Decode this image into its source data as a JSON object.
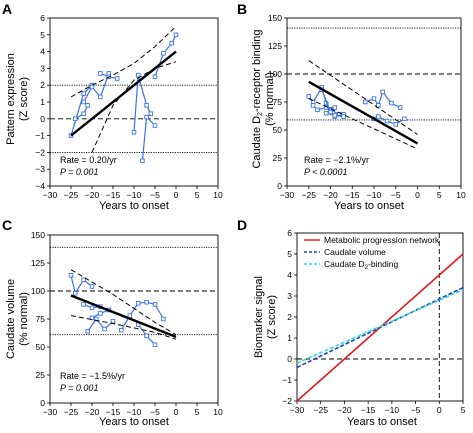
{
  "chart_data": [
    {
      "panel": "A",
      "type": "line",
      "xlabel": "Years to onset",
      "ylabel": [
        "Pattern expression",
        "(Z score)"
      ],
      "xlim": [
        -30,
        10
      ],
      "ylim": [
        -4,
        6
      ],
      "xticks": [
        -30,
        -25,
        -20,
        -15,
        -10,
        -5,
        0,
        5,
        10
      ],
      "yticks": [
        -4,
        -3,
        -2,
        -1,
        0,
        1,
        2,
        3,
        4,
        5,
        6
      ],
      "annotation": {
        "rate": "Rate = 0.20/yr",
        "p": "P = 0.001"
      },
      "reference_lines": [
        {
          "y": 2,
          "style": "dotted"
        },
        {
          "y": 0,
          "style": "dashed"
        },
        {
          "y": -2,
          "style": "dotted"
        }
      ],
      "regression": {
        "x": [
          -25,
          0
        ],
        "y": [
          -1.0,
          4.0
        ]
      },
      "confidence_upper": {
        "x": [
          -25,
          -20,
          -15,
          -10,
          -5,
          0
        ],
        "y": [
          1.3,
          2.0,
          2.6,
          3.3,
          4.3,
          5.5
        ]
      },
      "confidence_lower": {
        "x": [
          -20,
          -15,
          -10,
          -5,
          0
        ],
        "y": [
          -2.0,
          0.8,
          2.3,
          3.0,
          3.4
        ]
      },
      "subjects": [
        {
          "x": [
            -25,
            -22,
            -20
          ],
          "y": [
            -1.0,
            1.5,
            2.0
          ]
        },
        {
          "x": [
            -24,
            -22,
            -21
          ],
          "y": [
            0.0,
            0.3,
            0.8
          ]
        },
        {
          "x": [
            -22,
            -20,
            -18,
            -16
          ],
          "y": [
            1.0,
            1.9,
            1.3,
            2.7
          ]
        },
        {
          "x": [
            -18,
            -16,
            -14
          ],
          "y": [
            2.7,
            2.5,
            2.4
          ]
        },
        {
          "x": [
            -10,
            -9,
            -7,
            -6
          ],
          "y": [
            -0.8,
            2.6,
            0.8,
            0.3
          ]
        },
        {
          "x": [
            -8,
            -7,
            -5
          ],
          "y": [
            -2.5,
            0.1,
            -0.4
          ]
        },
        {
          "x": [
            -5,
            -3,
            -1,
            0
          ],
          "y": [
            2.5,
            3.9,
            4.5,
            5.0
          ]
        }
      ]
    },
    {
      "panel": "B",
      "type": "line",
      "xlabel": "Years to onset",
      "ylabel": [
        "Caudate D2-receptor binding",
        "(% normal)"
      ],
      "xlim": [
        -30,
        10
      ],
      "ylim": [
        0,
        150
      ],
      "xticks": [
        -30,
        -25,
        -20,
        -15,
        -10,
        -5,
        0,
        5,
        10
      ],
      "yticks": [
        0,
        25,
        50,
        75,
        100,
        125,
        150
      ],
      "annotation": {
        "rate": "Rate = −2.1%/yr",
        "p": "P < 0.0001"
      },
      "reference_lines": [
        {
          "y": 141,
          "style": "dotted"
        },
        {
          "y": 100,
          "style": "dashed"
        },
        {
          "y": 59,
          "style": "dotted"
        }
      ],
      "regression": {
        "x": [
          -25,
          0
        ],
        "y": [
          93,
          38
        ]
      },
      "confidence_upper": {
        "x": [
          -25,
          0
        ],
        "y": [
          112,
          46
        ]
      },
      "confidence_lower": {
        "x": [
          -25,
          0
        ],
        "y": [
          78,
          33
        ]
      },
      "subjects": [
        {
          "x": [
            -25,
            -24,
            -22,
            -21,
            -20,
            -18
          ],
          "y": [
            80,
            75,
            88,
            74,
            68,
            64
          ]
        },
        {
          "x": [
            -24,
            -23,
            -21,
            -19
          ],
          "y": [
            72,
            68,
            70,
            70
          ]
        },
        {
          "x": [
            -22,
            -20,
            -19,
            -17
          ],
          "y": [
            86,
            66,
            62,
            64
          ]
        },
        {
          "x": [
            -21,
            -19,
            -17
          ],
          "y": [
            65,
            63,
            62
          ]
        },
        {
          "x": [
            -12,
            -10,
            -9,
            -8,
            -6,
            -4
          ],
          "y": [
            75,
            78,
            72,
            84,
            74,
            70
          ]
        },
        {
          "x": [
            -10,
            -9,
            -7,
            -5,
            -3
          ],
          "y": [
            60,
            62,
            58,
            55,
            60
          ]
        }
      ]
    },
    {
      "panel": "C",
      "type": "line",
      "xlabel": "Years to onset",
      "ylabel": [
        "Caudate volume",
        "(% normal)"
      ],
      "xlim": [
        -30,
        10
      ],
      "ylim": [
        0,
        150
      ],
      "xticks": [
        -30,
        -25,
        -20,
        -15,
        -10,
        -5,
        0,
        5,
        10
      ],
      "yticks": [
        0,
        25,
        50,
        75,
        100,
        125,
        150
      ],
      "annotation": {
        "rate": "Rate = −1.5%/yr",
        "p": "P = 0.001"
      },
      "reference_lines": [
        {
          "y": 139,
          "style": "dotted"
        },
        {
          "y": 100,
          "style": "dashed"
        },
        {
          "y": 61,
          "style": "dotted"
        }
      ],
      "regression": {
        "x": [
          -25,
          0
        ],
        "y": [
          96,
          59
        ]
      },
      "confidence_upper": {
        "x": [
          -25,
          -15,
          -5,
          0
        ],
        "y": [
          119,
          97,
          72,
          61
        ]
      },
      "confidence_lower": {
        "x": [
          -25,
          -15,
          -5,
          0
        ],
        "y": [
          78,
          71,
          63,
          57
        ]
      },
      "subjects": [
        {
          "x": [
            -25,
            -24,
            -22,
            -20
          ],
          "y": [
            114,
            98,
            110,
            104
          ]
        },
        {
          "x": [
            -22,
            -20,
            -18
          ],
          "y": [
            88,
            85,
            86
          ]
        },
        {
          "x": [
            -21,
            -19,
            -17,
            -15
          ],
          "y": [
            64,
            75,
            66,
            73
          ]
        },
        {
          "x": [
            -20,
            -18,
            -16
          ],
          "y": [
            76,
            80,
            83
          ]
        },
        {
          "x": [
            -13,
            -11,
            -9,
            -7,
            -5,
            -3
          ],
          "y": [
            65,
            78,
            89,
            90,
            88,
            75
          ]
        },
        {
          "x": [
            -9,
            -7,
            -5
          ],
          "y": [
            70,
            60,
            52
          ]
        }
      ]
    },
    {
      "panel": "D",
      "type": "line",
      "xlabel": "Years to onset",
      "ylabel": [
        "Biomarker signal",
        "(Z score)"
      ],
      "xlim": [
        -30,
        5
      ],
      "ylim": [
        -2,
        6
      ],
      "xticks": [
        -30,
        -25,
        -20,
        -15,
        -10,
        -5,
        0,
        5
      ],
      "yticks": [
        -2,
        -1,
        0,
        1,
        2,
        3,
        4,
        5,
        6
      ],
      "reference_lines": [
        {
          "y": 0,
          "style": "dashed"
        },
        {
          "x": 0,
          "style": "dashed"
        }
      ],
      "series": [
        {
          "name": "Metabolic progression network",
          "color": "#e8141c",
          "style": "solid",
          "x": [
            -30,
            5
          ],
          "y": [
            -2.0,
            5.0
          ]
        },
        {
          "name": "Caudate volume",
          "color": "#1f3fbf",
          "style": "dashed",
          "x": [
            -30,
            5
          ],
          "y": [
            -0.4,
            3.4
          ]
        },
        {
          "name": "Caudate D2-binding",
          "color": "#33ddd6",
          "style": "dashed",
          "x": [
            -30,
            5
          ],
          "y": [
            -0.2,
            3.3
          ]
        }
      ]
    }
  ],
  "colors": {
    "subject_line": "#3a73e8",
    "regression": "#000000"
  }
}
